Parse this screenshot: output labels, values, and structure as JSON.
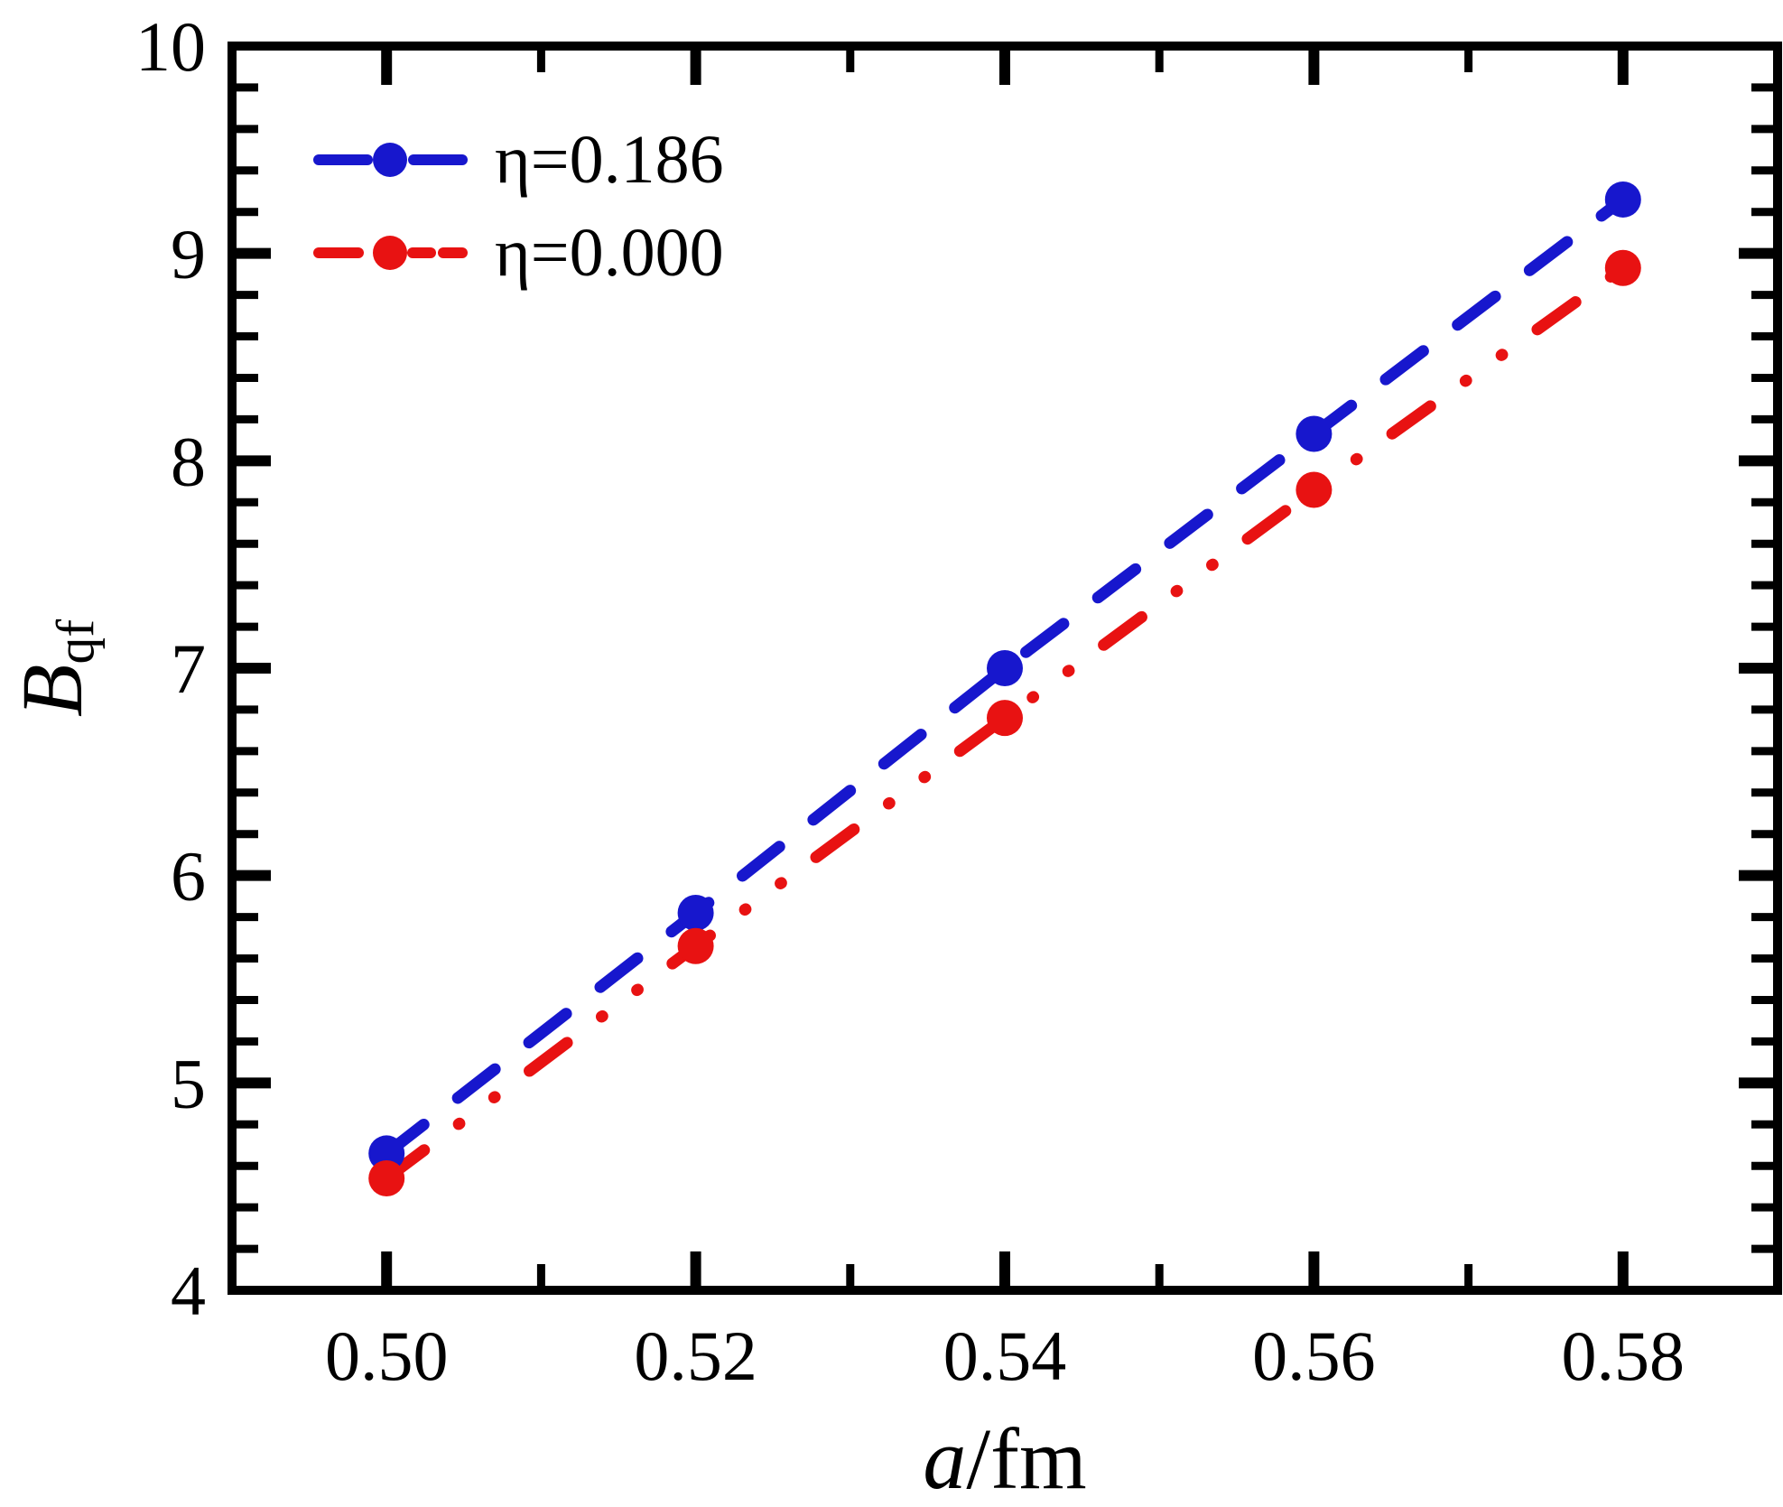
{
  "chart_data": {
    "type": "line",
    "title": "",
    "xlabel": "a/fm",
    "ylabel": "B_qf",
    "x": [
      0.5,
      0.52,
      0.54,
      0.56,
      0.58
    ],
    "x_tick_labels": [
      "0.50",
      "0.52",
      "0.54",
      "0.56",
      "0.58"
    ],
    "series": [
      {
        "name": "η=0.186",
        "color": "#1717cd",
        "line_style": "dashed",
        "marker": "circle",
        "values": [
          4.66,
          5.82,
          7.0,
          8.13,
          9.26
        ]
      },
      {
        "name": "η=0.000",
        "color": "#e81212",
        "line_style": "dash-dot-dot",
        "marker": "circle",
        "values": [
          4.54,
          5.66,
          6.76,
          7.86,
          8.93
        ]
      }
    ],
    "xlim": [
      0.49,
      0.59
    ],
    "ylim": [
      4,
      10
    ],
    "y_major_ticks": [
      4,
      5,
      6,
      7,
      8,
      9,
      10
    ],
    "x_minor_tick_step": 0.01,
    "y_minor_tick_step": 0.2,
    "grid": false,
    "legend_position": "top-left"
  },
  "axis_titles": {
    "x_var": "a",
    "x_unit": "/fm",
    "y_var": "B",
    "y_sub": "qf"
  }
}
